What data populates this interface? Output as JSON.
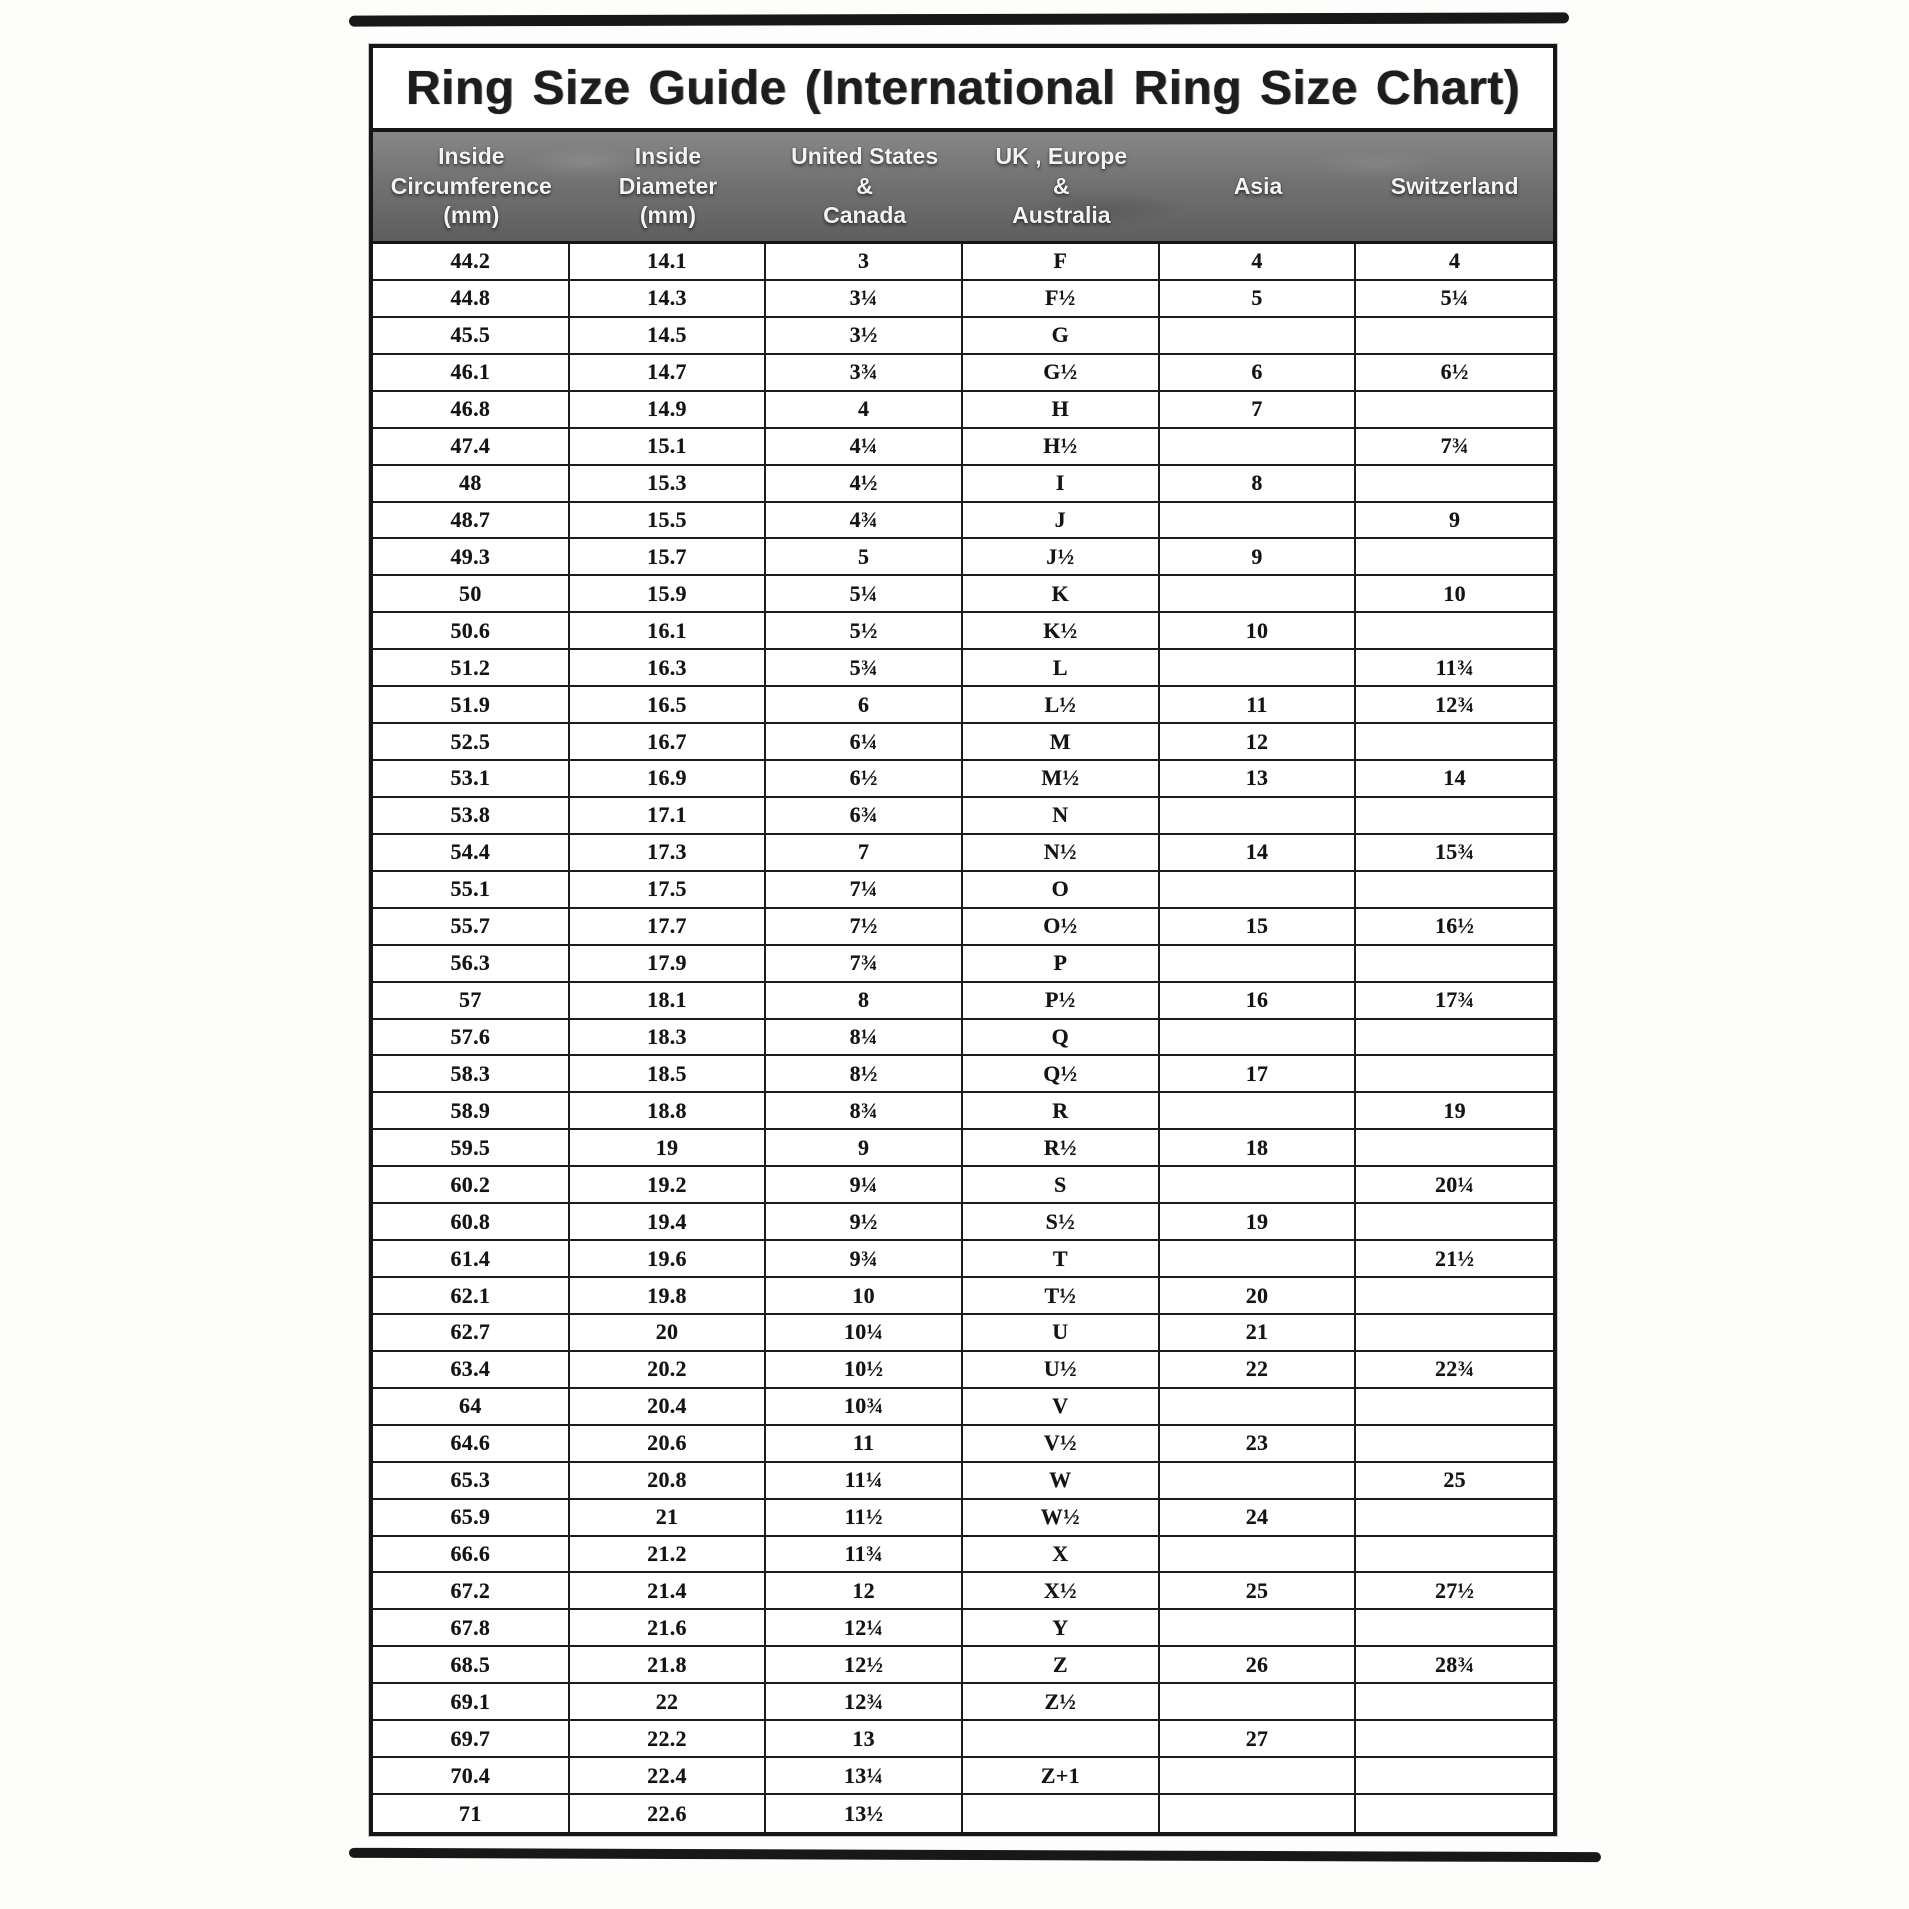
{
  "title": "Ring Size Guide (International Ring Size Chart)",
  "table": {
    "columns": [
      {
        "id": "inside-circumference-mm",
        "lines": [
          "Inside",
          "Circumference",
          "(mm)"
        ]
      },
      {
        "id": "inside-diameter-mm",
        "lines": [
          "Inside",
          "Diameter",
          "(mm)"
        ]
      },
      {
        "id": "united-states-canada",
        "lines": [
          "United States",
          "&",
          "Canada"
        ]
      },
      {
        "id": "uk-europe-australia",
        "lines": [
          "UK , Europe",
          "&",
          "Australia"
        ]
      },
      {
        "id": "asia",
        "lines": [
          "Asia"
        ]
      },
      {
        "id": "switzerland",
        "lines": [
          "Switzerland"
        ]
      }
    ],
    "rows": [
      [
        "44.2",
        "14.1",
        "3",
        "F",
        "4",
        "4"
      ],
      [
        "44.8",
        "14.3",
        "3¼",
        "F½",
        "5",
        "5¼"
      ],
      [
        "45.5",
        "14.5",
        "3½",
        "G",
        "",
        ""
      ],
      [
        "46.1",
        "14.7",
        "3¾",
        "G½",
        "6",
        "6½"
      ],
      [
        "46.8",
        "14.9",
        "4",
        "H",
        "7",
        ""
      ],
      [
        "47.4",
        "15.1",
        "4¼",
        "H½",
        "",
        "7¾"
      ],
      [
        "48",
        "15.3",
        "4½",
        "I",
        "8",
        ""
      ],
      [
        "48.7",
        "15.5",
        "4¾",
        "J",
        "",
        "9"
      ],
      [
        "49.3",
        "15.7",
        "5",
        "J½",
        "9",
        ""
      ],
      [
        "50",
        "15.9",
        "5¼",
        "K",
        "",
        "10"
      ],
      [
        "50.6",
        "16.1",
        "5½",
        "K½",
        "10",
        ""
      ],
      [
        "51.2",
        "16.3",
        "5¾",
        "L",
        "",
        "11¾"
      ],
      [
        "51.9",
        "16.5",
        "6",
        "L½",
        "11",
        "12¾"
      ],
      [
        "52.5",
        "16.7",
        "6¼",
        "M",
        "12",
        ""
      ],
      [
        "53.1",
        "16.9",
        "6½",
        "M½",
        "13",
        "14"
      ],
      [
        "53.8",
        "17.1",
        "6¾",
        "N",
        "",
        ""
      ],
      [
        "54.4",
        "17.3",
        "7",
        "N½",
        "14",
        "15¾"
      ],
      [
        "55.1",
        "17.5",
        "7¼",
        "O",
        "",
        ""
      ],
      [
        "55.7",
        "17.7",
        "7½",
        "O½",
        "15",
        "16½"
      ],
      [
        "56.3",
        "17.9",
        "7¾",
        "P",
        "",
        ""
      ],
      [
        "57",
        "18.1",
        "8",
        "P½",
        "16",
        "17¾"
      ],
      [
        "57.6",
        "18.3",
        "8¼",
        "Q",
        "",
        ""
      ],
      [
        "58.3",
        "18.5",
        "8½",
        "Q½",
        "17",
        ""
      ],
      [
        "58.9",
        "18.8",
        "8¾",
        "R",
        "",
        "19"
      ],
      [
        "59.5",
        "19",
        "9",
        "R½",
        "18",
        ""
      ],
      [
        "60.2",
        "19.2",
        "9¼",
        "S",
        "",
        "20¼"
      ],
      [
        "60.8",
        "19.4",
        "9½",
        "S½",
        "19",
        ""
      ],
      [
        "61.4",
        "19.6",
        "9¾",
        "T",
        "",
        "21½"
      ],
      [
        "62.1",
        "19.8",
        "10",
        "T½",
        "20",
        ""
      ],
      [
        "62.7",
        "20",
        "10¼",
        "U",
        "21",
        ""
      ],
      [
        "63.4",
        "20.2",
        "10½",
        "U½",
        "22",
        "22¾"
      ],
      [
        "64",
        "20.4",
        "10¾",
        "V",
        "",
        ""
      ],
      [
        "64.6",
        "20.6",
        "11",
        "V½",
        "23",
        ""
      ],
      [
        "65.3",
        "20.8",
        "11¼",
        "W",
        "",
        "25"
      ],
      [
        "65.9",
        "21",
        "11½",
        "W½",
        "24",
        ""
      ],
      [
        "66.6",
        "21.2",
        "11¾",
        "X",
        "",
        ""
      ],
      [
        "67.2",
        "21.4",
        "12",
        "X½",
        "25",
        "27½"
      ],
      [
        "67.8",
        "21.6",
        "12¼",
        "Y",
        "",
        ""
      ],
      [
        "68.5",
        "21.8",
        "12½",
        "Z",
        "26",
        "28¾"
      ],
      [
        "69.1",
        "22",
        "12¾",
        "Z½",
        "",
        ""
      ],
      [
        "69.7",
        "22.2",
        "13",
        "",
        "27",
        ""
      ],
      [
        "70.4",
        "22.4",
        "13¼",
        "Z+1",
        "",
        ""
      ],
      [
        "71",
        "22.6",
        "13½",
        "",
        "",
        ""
      ]
    ]
  },
  "colors": {
    "ink": "#161616",
    "header_background": "#717171",
    "header_text": "#f4f4f2",
    "paper": "#ffffff"
  }
}
